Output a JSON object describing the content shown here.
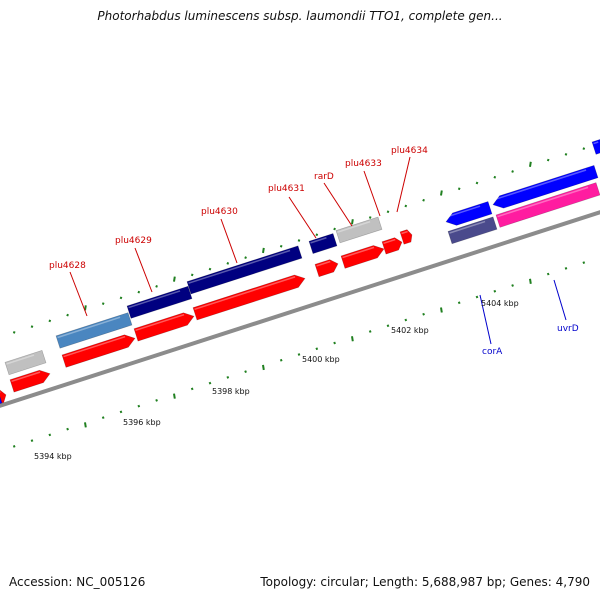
{
  "title": "Photorhabdus luminescens subsp. laumondii TTO1, complete gen...",
  "footer": {
    "accession": "Accession: NC_005126",
    "stats": "Topology: circular; Length: 5,688,987 bp; Genes: 4,790"
  },
  "colors": {
    "backbone": "#8c8c8c",
    "forward_strand_gene": "#ff0000",
    "reverse_strand_gene": "#0000ff",
    "navy": "#000080",
    "steel_blue": "#4a86c0",
    "slate": "#4a4a8c",
    "magenta": "#ff1ca0",
    "grey": "#c0c0c0",
    "tick": "#208020"
  },
  "ruler": {
    "unit": "kbp",
    "ticks": [
      "5394 kbp",
      "5396 kbp",
      "5398 kbp",
      "5400 kbp",
      "5402 kbp",
      "5404 kbp"
    ]
  },
  "gene_labels": [
    {
      "name": "plu4628",
      "color": "#cc0000"
    },
    {
      "name": "plu4629",
      "color": "#cc0000"
    },
    {
      "name": "plu4630",
      "color": "#cc0000"
    },
    {
      "name": "plu4631",
      "color": "#cc0000"
    },
    {
      "name": "rarD",
      "color": "#cc0000"
    },
    {
      "name": "plu4633",
      "color": "#cc0000"
    },
    {
      "name": "plu4634",
      "color": "#cc0000"
    },
    {
      "name": "corA",
      "color": "#0000cc"
    },
    {
      "name": "uvrD",
      "color": "#0000cc"
    }
  ]
}
